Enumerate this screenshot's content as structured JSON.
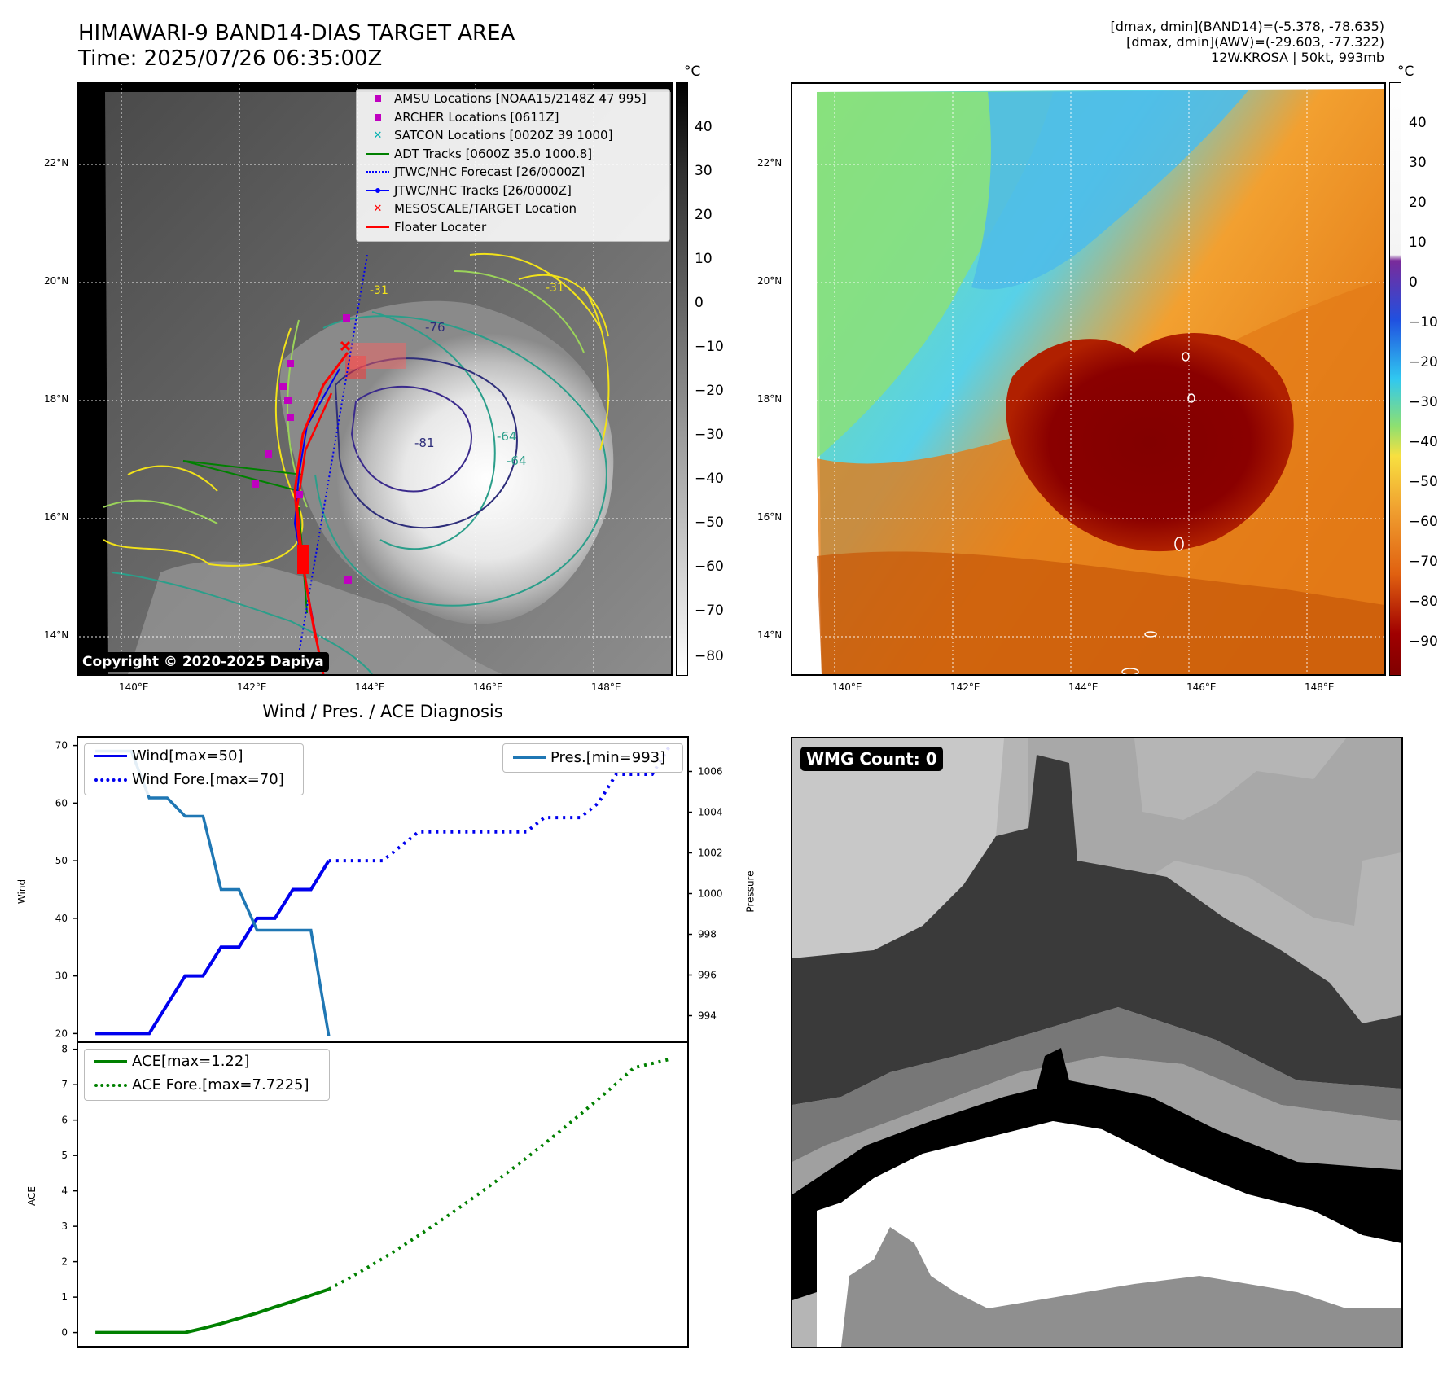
{
  "header": {
    "title_line1": "HIMAWARI-9 BAND14-DIAS TARGET AREA",
    "title_line2": "Time: 2025/07/26 06:35:00Z",
    "info_line1": "[dmax, dmin](BAND14)=(-5.378, -78.635)",
    "info_line2": "[dmax, dmin](AWV)=(-29.603, -77.322)",
    "info_line3": "12W.KROSA | 50kt, 993mb"
  },
  "map": {
    "lat_labels": [
      "22°N",
      "20°N",
      "18°N",
      "16°N",
      "14°N"
    ],
    "lon_labels": [
      "140°E",
      "142°E",
      "144°E",
      "146°E",
      "148°E"
    ],
    "colorbar_unit": "°C",
    "ir_colorbar_ticks": [
      "40",
      "30",
      "20",
      "10",
      "0",
      "−10",
      "−20",
      "−30",
      "−40",
      "−50",
      "−60",
      "−70",
      "−80"
    ],
    "awv_colorbar_ticks": [
      "40",
      "30",
      "20",
      "10",
      "0",
      "−10",
      "−20",
      "−30",
      "−40",
      "−50",
      "−60",
      "−70",
      "−80",
      "−90"
    ],
    "contour_labels": [
      "-31",
      "-31",
      "-64",
      "-64",
      "-81",
      "-76"
    ],
    "copyright": "Copyright © 2020-2025 Dapiya"
  },
  "legend": {
    "items": [
      {
        "label": "AMSU Locations [NOAA15/2148Z 47 995]",
        "symbol": "square",
        "color": "#c000c0"
      },
      {
        "label": "ARCHER Locations [0611Z]",
        "symbol": "square",
        "color": "#c000c0"
      },
      {
        "label": "SATCON Locations [0020Z 39 1000]",
        "symbol": "x",
        "color": "#00b0b0"
      },
      {
        "label": "ADT Tracks [0600Z 35.0 1000.8]",
        "symbol": "line",
        "color": "#008000"
      },
      {
        "label": "JTWC/NHC Forecast [26/0000Z]",
        "symbol": "dotted",
        "color": "#0000ff"
      },
      {
        "label": "JTWC/NHC Tracks [26/0000Z]",
        "symbol": "line-dot",
        "color": "#0000ff"
      },
      {
        "label": "MESOSCALE/TARGET Location",
        "symbol": "x",
        "color": "#ff0000"
      },
      {
        "label": "Floater Locater",
        "symbol": "line",
        "color": "#ff0000"
      }
    ]
  },
  "diagnosis": {
    "title": "Wind / Pres. / ACE Diagnosis",
    "wind_ylabel": "Wind",
    "pres_ylabel": "Pressure",
    "ace_ylabel": "ACE",
    "wind_legend": [
      "Wind[max=50]",
      "Wind Fore.[max=70]"
    ],
    "pres_legend": [
      "Pres.[min=993]"
    ],
    "ace_legend": [
      "ACE[max=1.22]",
      "ACE Fore.[max=7.7225]"
    ]
  },
  "wmg": {
    "label": "WMG Count: 0"
  },
  "chart_data": [
    {
      "type": "line",
      "name": "wind",
      "ylim": [
        18.5,
        71.5
      ],
      "yticks": [
        20,
        30,
        40,
        50,
        60,
        70
      ],
      "xlim": [
        -1,
        33
      ],
      "series": [
        {
          "name": "Wind[max=50]",
          "style": "solid",
          "color": "#0000ee",
          "x": [
            0,
            1,
            2,
            3,
            4,
            5,
            6,
            7,
            8,
            9,
            10,
            11,
            12,
            13
          ],
          "y": [
            20,
            20,
            20,
            20,
            25,
            30,
            30,
            35,
            35,
            40,
            40,
            45,
            45,
            50
          ]
        },
        {
          "name": "Wind Fore.[max=70]",
          "style": "dotted",
          "color": "#0000ee",
          "x": [
            13,
            14,
            15,
            16,
            17,
            18,
            19,
            20,
            21,
            22,
            23,
            24,
            25,
            26,
            27,
            28,
            29,
            30,
            31,
            32
          ],
          "y": [
            50,
            50,
            50,
            50,
            52.5,
            55,
            55,
            55,
            55,
            55,
            55,
            55,
            57.5,
            57.5,
            57.5,
            60,
            65,
            65,
            65,
            70
          ]
        }
      ]
    },
    {
      "type": "line",
      "name": "pressure",
      "ylim": [
        992.7,
        1007.7
      ],
      "yticks": [
        994,
        996,
        998,
        1000,
        1002,
        1004,
        1006
      ],
      "xlim": [
        -1,
        33
      ],
      "series": [
        {
          "name": "Pres.[min=993]",
          "style": "solid",
          "color": "#1f77b4",
          "x": [
            0,
            1,
            2,
            3,
            4,
            5,
            6,
            7,
            8,
            9,
            10,
            11,
            12,
            13
          ],
          "y": [
            1007,
            1007,
            1007,
            1004.7,
            1004.7,
            1003.8,
            1003.8,
            1000.2,
            1000.2,
            998.2,
            998.2,
            998.2,
            998.2,
            993
          ]
        }
      ]
    },
    {
      "type": "line",
      "name": "ace",
      "ylim": [
        -0.4,
        8.2
      ],
      "yticks": [
        0,
        1,
        2,
        3,
        4,
        5,
        6,
        7,
        8
      ],
      "xlim": [
        -1,
        33
      ],
      "series": [
        {
          "name": "ACE[max=1.22]",
          "style": "solid",
          "color": "#008000",
          "x": [
            0,
            1,
            2,
            3,
            4,
            5,
            6,
            7,
            8,
            9,
            10,
            11,
            12,
            13
          ],
          "y": [
            0,
            0,
            0,
            0,
            0,
            0,
            0.12,
            0.25,
            0.4,
            0.55,
            0.72,
            0.88,
            1.05,
            1.22
          ]
        },
        {
          "name": "ACE Fore.[max=7.7225]",
          "style": "dotted",
          "color": "#008000",
          "x": [
            13,
            14,
            15,
            16,
            17,
            18,
            19,
            20,
            21,
            22,
            23,
            24,
            25,
            26,
            27,
            28,
            29,
            30,
            31,
            32
          ],
          "y": [
            1.22,
            1.5,
            1.79,
            2.09,
            2.41,
            2.74,
            3.08,
            3.43,
            3.79,
            4.16,
            4.54,
            4.93,
            5.33,
            5.74,
            6.16,
            6.59,
            7.03,
            7.48,
            7.6,
            7.7225
          ]
        }
      ]
    }
  ]
}
